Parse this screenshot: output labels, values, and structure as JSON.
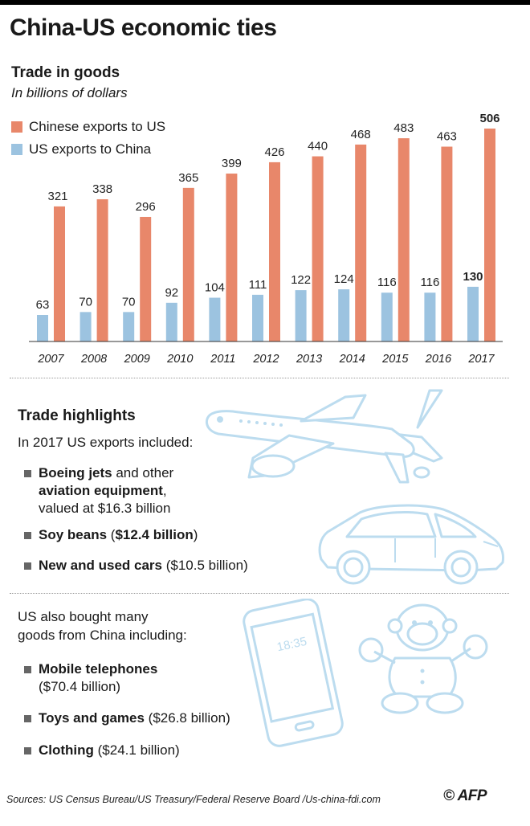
{
  "title": "China-US economic ties",
  "chart_section": {
    "heading": "Trade in goods",
    "unit_note": "In billions of dollars"
  },
  "colors": {
    "chinese_exports": "#e8876a",
    "us_exports": "#9cc3e0",
    "illustration": "#bcdcef"
  },
  "chart_data": {
    "type": "bar",
    "title": "Trade in goods",
    "ylabel": "In billions of dollars",
    "xlabel": "",
    "categories": [
      "2007",
      "2008",
      "2009",
      "2010",
      "2011",
      "2012",
      "2013",
      "2014",
      "2015",
      "2016",
      "2017"
    ],
    "series": [
      {
        "name": "US exports to China",
        "values": [
          63,
          70,
          70,
          92,
          104,
          111,
          122,
          124,
          116,
          116,
          130
        ]
      },
      {
        "name": "Chinese exports to US",
        "values": [
          321,
          338,
          296,
          365,
          399,
          426,
          440,
          468,
          483,
          463,
          506
        ]
      }
    ],
    "ylim": [
      0,
      506
    ],
    "grid": false,
    "legend_position": "top-left"
  },
  "highlights": {
    "heading": "Trade highlights",
    "intro": "In 2017 US exports included:",
    "items": [
      {
        "bold": "Boeing jets",
        "rest": " and other",
        "bold2": "aviation equipment",
        "rest2": ",",
        "line3": "valued at $16.3 billion"
      },
      {
        "bold": "Soy beans",
        "rest": " (",
        "bold2": "$12.4 billion",
        "rest2": ")"
      },
      {
        "bold": "New and used cars",
        "rest": " ($10.5 billion)"
      }
    ]
  },
  "imports": {
    "intro_line1": "US also bought many",
    "intro_line2": "goods from China including:",
    "items": [
      {
        "bold": "Mobile telephones",
        "line2": "($70.4 billion)"
      },
      {
        "bold": "Toys and games",
        "rest": " ($26.8 billion)"
      },
      {
        "bold": "Clothing",
        "rest": " ($24.1 billion)"
      }
    ],
    "phone_screen_time": "18:35"
  },
  "footer": {
    "sources": "Sources: US Census Bureau/US Treasury/Federal Reserve Board /Us-china-fdi.com",
    "logo": "© AFP"
  }
}
